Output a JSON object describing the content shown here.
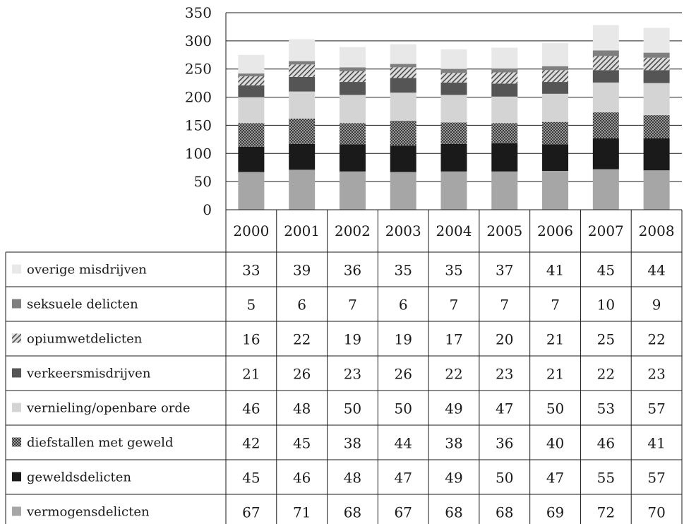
{
  "chart_data": {
    "type": "bar",
    "stacked": true,
    "legend_placement": "data-table-left",
    "categories": [
      "2000",
      "2001",
      "2002",
      "2003",
      "2004",
      "2005",
      "2006",
      "2007",
      "2008"
    ],
    "ylim": [
      0,
      350
    ],
    "yticks": [
      0,
      50,
      100,
      150,
      200,
      250,
      300,
      350
    ],
    "grid": true,
    "series": [
      {
        "name": "vermogensdelicten",
        "values": [
          67,
          71,
          68,
          67,
          68,
          68,
          69,
          72,
          70
        ],
        "color": "#a6a6a6",
        "pattern": "solid"
      },
      {
        "name": "geweldsdelicten",
        "values": [
          45,
          46,
          48,
          47,
          49,
          50,
          47,
          55,
          57
        ],
        "color": "#1a1a1a",
        "pattern": "solid"
      },
      {
        "name": "diefstallen met geweld",
        "values": [
          42,
          45,
          38,
          44,
          38,
          36,
          40,
          46,
          41
        ],
        "color": "#6e6e6e",
        "pattern": "checker"
      },
      {
        "name": "vernieling/openbare orde",
        "values": [
          46,
          48,
          50,
          50,
          49,
          47,
          50,
          53,
          57
        ],
        "color": "#d4d4d4",
        "pattern": "solid"
      },
      {
        "name": "verkeersmisdrijven",
        "values": [
          21,
          26,
          23,
          26,
          22,
          23,
          21,
          22,
          23
        ],
        "color": "#555555",
        "pattern": "solid"
      },
      {
        "name": "opiumwetdelicten",
        "values": [
          16,
          22,
          19,
          19,
          17,
          20,
          21,
          25,
          22
        ],
        "color": "#bdbdbd",
        "pattern": "hatch"
      },
      {
        "name": "seksuele delicten",
        "values": [
          5,
          6,
          7,
          6,
          7,
          7,
          7,
          10,
          9
        ],
        "color": "#7f7f7f",
        "pattern": "solid"
      },
      {
        "name": "overige misdrijven",
        "values": [
          33,
          39,
          36,
          35,
          35,
          37,
          41,
          45,
          44
        ],
        "color": "#e8e8e8",
        "pattern": "solid"
      }
    ]
  }
}
